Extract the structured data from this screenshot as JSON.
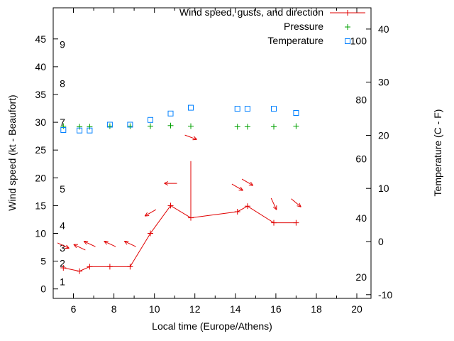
{
  "chart_data": {
    "type": "line",
    "title": "",
    "xlabel": "Local time (Europe/Athens)",
    "ylabel_left": "Wind speed (kt - Beaufort)",
    "ylabel_right": "Temperature (C - F)",
    "background": "#ffffff",
    "legend": {
      "position": "top-right-inside",
      "entries": [
        {
          "label": "Wind speed, gusts, and direction",
          "marker": "line-plus",
          "color": "#e00000"
        },
        {
          "label": "Pressure",
          "marker": "plus",
          "color": "#00a000"
        },
        {
          "label": "Temperature",
          "marker": "open-square",
          "color": "#0080ff"
        }
      ]
    },
    "x_axis": {
      "range": [
        5.0,
        20.7
      ],
      "major_ticks": [
        6,
        8,
        10,
        12,
        14,
        16,
        18,
        20
      ],
      "minor_tick_step": 1
    },
    "wind_axis": {
      "range_kt": [
        -1.7,
        50.6
      ],
      "ticks_kt": [
        0,
        5,
        10,
        15,
        20,
        25,
        30,
        35,
        40,
        45
      ],
      "beaufort_labels": [
        {
          "label": "1",
          "kt": 1.3
        },
        {
          "label": "2",
          "kt": 4.6
        },
        {
          "label": "3",
          "kt": 7.4
        },
        {
          "label": "4",
          "kt": 11.4
        },
        {
          "label": "5",
          "kt": 18.0
        },
        {
          "label": "7",
          "kt": 30.0
        },
        {
          "label": "8",
          "kt": 37.0
        },
        {
          "label": "9",
          "kt": 44.0
        }
      ]
    },
    "temp_axis": {
      "range_c": [
        -10.7,
        44.0
      ],
      "ticks_c": [
        -10,
        0,
        10,
        20,
        30,
        40
      ],
      "fahrenheit_inner_labels": [
        20,
        40,
        60,
        80,
        100
      ]
    },
    "grid": false,
    "x": [
      5.5,
      6.3,
      6.8,
      7.8,
      8.8,
      9.8,
      10.8,
      11.8,
      14.1,
      14.6,
      15.9,
      17.0
    ],
    "series": [
      {
        "name": "wind_speed_kt",
        "type": "line+plus",
        "color": "#e00000",
        "values": [
          3.8,
          3.2,
          4.0,
          4.0,
          4.0,
          10.0,
          15.0,
          12.8,
          13.9,
          14.9,
          11.9,
          11.9
        ]
      },
      {
        "name": "wind_gust_spike",
        "type": "vline",
        "color": "#e00000",
        "x": 11.8,
        "from_kt": 12.8,
        "to_kt": 23.0
      },
      {
        "name": "wind_direction_arrows",
        "type": "arrows",
        "color": "#e00000",
        "points": [
          {
            "x": 5.5,
            "kt": 7.8,
            "angle_deg": 25
          },
          {
            "x": 6.3,
            "kt": 7.5,
            "angle_deg": 205
          },
          {
            "x": 6.8,
            "kt": 8.1,
            "angle_deg": 205
          },
          {
            "x": 7.8,
            "kt": 8.1,
            "angle_deg": 205
          },
          {
            "x": 8.8,
            "kt": 8.1,
            "angle_deg": 205
          },
          {
            "x": 9.8,
            "kt": 13.7,
            "angle_deg": 150
          },
          {
            "x": 10.8,
            "kt": 19.0,
            "angle_deg": 180
          },
          {
            "x": 11.8,
            "kt": 27.3,
            "angle_deg": 20
          },
          {
            "x": 14.1,
            "kt": 18.3,
            "angle_deg": 30
          },
          {
            "x": 14.6,
            "kt": 19.2,
            "angle_deg": 30
          },
          {
            "x": 15.9,
            "kt": 15.3,
            "angle_deg": 65
          },
          {
            "x": 17.0,
            "kt": 15.5,
            "angle_deg": 40
          }
        ]
      },
      {
        "name": "pressure",
        "type": "plus",
        "color": "#00a000",
        "axis": "left-plot-units",
        "values": [
          29.3,
          29.2,
          29.2,
          29.3,
          29.3,
          29.3,
          29.4,
          29.3,
          29.2,
          29.2,
          29.2,
          29.3
        ]
      },
      {
        "name": "temperature_c",
        "type": "open-square",
        "color": "#0080ff",
        "axis": "right",
        "values": [
          21.0,
          20.9,
          20.9,
          22.0,
          22.0,
          22.9,
          24.1,
          25.2,
          25.0,
          25.0,
          25.0,
          24.2
        ]
      }
    ]
  }
}
